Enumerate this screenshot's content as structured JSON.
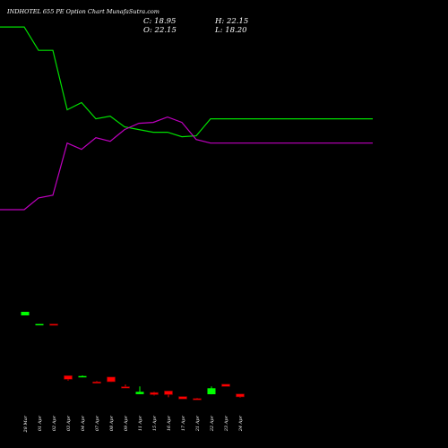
{
  "header": {
    "title": "INDHOTEL 655 PE Option Chart MunafaSutra.com",
    "close": "C: 18.95",
    "open": "O: 22.15",
    "high": "H: 22.15",
    "low": "L: 18.20"
  },
  "chart_data": {
    "type": "candlestick",
    "title": "INDHOTEL 655 PE Option Chart MunafaSutra.com",
    "colors": {
      "up": "#00ff00",
      "down": "#ff0000",
      "line1": "#00e000",
      "line2": "#c000c0",
      "background": "#000000"
    },
    "categories": [
      "28 Mar",
      "01 Apr",
      "02 Apr",
      "03 Apr",
      "04 Apr",
      "07 Apr",
      "08 Apr",
      "09 Apr",
      "11 Apr",
      "15 Apr",
      "16 Apr",
      "17 Apr",
      "21 Apr",
      "22 Apr",
      "23 Apr",
      "24 Apr"
    ],
    "candles": [
      {
        "date": "28 Mar",
        "open": 109.5,
        "high": 113.5,
        "low": 109.5,
        "close": 113.5
      },
      {
        "date": "01 Apr",
        "open": 99.8,
        "high": 99.9,
        "low": 99.7,
        "close": 99.9
      },
      {
        "date": "02 Apr",
        "open": 99.9,
        "high": 99.9,
        "low": 99.7,
        "close": 99.7
      },
      {
        "date": "03 Apr",
        "open": 42.5,
        "high": 42.5,
        "low": 37.0,
        "close": 38.5
      },
      {
        "date": "04 Apr",
        "open": 41.2,
        "high": 42.8,
        "low": 41.2,
        "close": 42.1
      },
      {
        "date": "07 Apr",
        "open": 35.6,
        "high": 36.5,
        "low": 33.8,
        "close": 34.4
      },
      {
        "date": "08 Apr",
        "open": 41.0,
        "high": 41.0,
        "low": 35.5,
        "close": 35.8
      },
      {
        "date": "09 Apr",
        "open": 30.2,
        "high": 32.5,
        "low": 28.8,
        "close": 29.3
      },
      {
        "date": "11 Apr",
        "open": 22.0,
        "high": 30.5,
        "low": 22.0,
        "close": 24.6
      },
      {
        "date": "15 Apr",
        "open": 23.8,
        "high": 24.6,
        "low": 20.5,
        "close": 21.5
      },
      {
        "date": "16 Apr",
        "open": 25.5,
        "high": 25.5,
        "low": 18.5,
        "close": 21.5
      },
      {
        "date": "17 Apr",
        "open": 19.3,
        "high": 19.3,
        "low": 16.4,
        "close": 16.6
      },
      {
        "date": "21 Apr",
        "open": 17.1,
        "high": 17.8,
        "low": 16.0,
        "close": 16.7
      },
      {
        "date": "22 Apr",
        "open": 21.8,
        "high": 30.5,
        "low": 21.8,
        "close": 28.5
      },
      {
        "date": "23 Apr",
        "open": 33.0,
        "high": 33.0,
        "low": 30.5,
        "close": 30.5
      },
      {
        "date": "24 Apr",
        "open": 22.15,
        "high": 22.15,
        "low": 18.2,
        "close": 18.95
      }
    ],
    "lines": [
      {
        "color": "#00e000",
        "points": [
          [
            -1,
            430
          ],
          [
            0,
            430
          ],
          [
            1,
            404
          ],
          [
            2,
            404
          ],
          [
            3,
            338
          ],
          [
            4,
            346
          ],
          [
            5,
            328
          ],
          [
            6,
            331
          ],
          [
            7,
            319
          ],
          [
            8,
            316
          ],
          [
            9,
            313
          ],
          [
            10,
            313
          ],
          [
            11,
            308
          ],
          [
            12,
            309
          ],
          [
            13,
            328
          ],
          [
            14,
            328
          ]
        ]
      },
      {
        "color": "#c000c0",
        "points": [
          [
            -1,
            227
          ],
          [
            0,
            227
          ],
          [
            1,
            240
          ],
          [
            2,
            243
          ],
          [
            3,
            301
          ],
          [
            4,
            294
          ],
          [
            5,
            307
          ],
          [
            6,
            303
          ],
          [
            7,
            316
          ],
          [
            8,
            323
          ],
          [
            9,
            324
          ],
          [
            10,
            330
          ],
          [
            11,
            324
          ],
          [
            12,
            305
          ],
          [
            13,
            301
          ],
          [
            14,
            301
          ]
        ]
      }
    ],
    "price_range": [
      -8,
      460
    ],
    "axes": {
      "y_labels_shown": false,
      "grid": false
    }
  }
}
